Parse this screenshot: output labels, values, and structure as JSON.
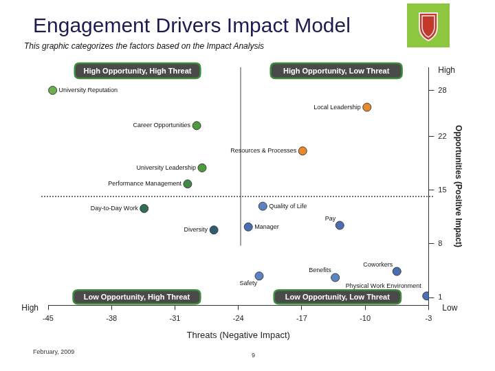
{
  "chart_data": {
    "type": "scatter",
    "title": "Engagement Drivers Impact Model",
    "subtitle": "This graphic categorizes the factors based on the Impact Analysis",
    "x_label": "Threats (Negative Impact)",
    "y_label": "Opportunities (Positive Impact)",
    "xlim": [
      -45,
      -3
    ],
    "xticks": [
      -45,
      -38,
      -31,
      -24,
      -17,
      -10,
      -3
    ],
    "ylim": [
      0,
      31
    ],
    "yticks": [
      1,
      8,
      15,
      22,
      28
    ],
    "grid": false,
    "marker": "circle",
    "point_labels": [
      "University Reputation",
      "Local Leadership",
      "Career Opportunities",
      "Resources & Processes",
      "University Leadership",
      "Performance Management",
      "Day-to-Day Work",
      "Quality of Life",
      "Diversity",
      "Manager",
      "Pay",
      "Benefits",
      "Coworkers",
      "Safety",
      "Physical Work Environment"
    ],
    "x": [
      -44.5,
      -9.8,
      -28.6,
      -16.9,
      -28.0,
      -29.6,
      -34.4,
      -21.3,
      -26.7,
      -22.9,
      -12.8,
      -13.3,
      -6.5,
      -21.7,
      -3.2
    ],
    "values": [
      28,
      25.8,
      23.4,
      20.1,
      17.9,
      15.8,
      12.6,
      12.9,
      9.8,
      10.2,
      10.4,
      3.6,
      4.4,
      3.8,
      1.2
    ],
    "colors": [
      "#6ab04c",
      "#e8892b",
      "#4e9a3e",
      "#e8892b",
      "#4e9a3e",
      "#3f8a45",
      "#2f6e4f",
      "#5b83c4",
      "#2e5e6e",
      "#4a6fb0",
      "#4a6fb0",
      "#5b83c4",
      "#4a6fb0",
      "#5b83c4",
      "#4a6fb0"
    ],
    "quadrants": {
      "top_left": "High Opportunity, High Threat",
      "top_right": "High Opportunity, Low Threat",
      "bottom_left": "Low Opportunity, High Threat",
      "bottom_right": "Low Opportunity, Low Threat"
    },
    "axis_ends": {
      "y_top": "High",
      "y_bottom": "Low",
      "x_left": "High"
    },
    "footer": "February, 2009",
    "page": 9
  }
}
